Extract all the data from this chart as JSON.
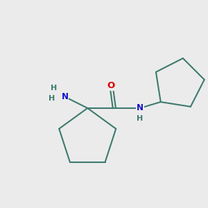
{
  "background_color": "#ebebeb",
  "bond_color": "#3d7a6e",
  "N_color": "#1010cc",
  "O_color": "#dd0000",
  "line_width": 1.5,
  "font_size_atom": 8.5,
  "figsize": [
    3.0,
    3.0
  ],
  "dpi": 100,
  "xlim": [
    0,
    10
  ],
  "ylim": [
    0,
    10
  ]
}
